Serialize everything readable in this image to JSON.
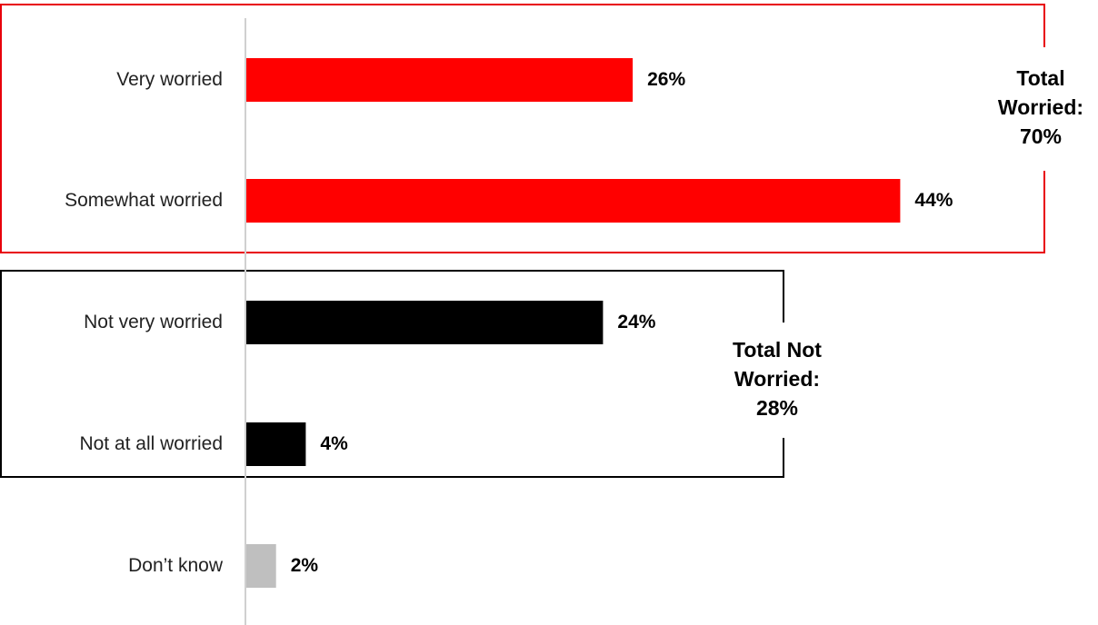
{
  "chart_data": {
    "type": "bar",
    "orientation": "horizontal",
    "categories": [
      "Very worried",
      "Somewhat worried",
      "Not very worried",
      "Not at all worried",
      "Don’t know"
    ],
    "values": [
      26,
      44,
      24,
      4,
      2
    ],
    "value_labels": [
      "26%",
      "44%",
      "24%",
      "4%",
      "2%"
    ],
    "bar_colors": [
      "#ff0000",
      "#ff0000",
      "#000000",
      "#000000",
      "#bfbfbf"
    ],
    "xlim": [
      0,
      50
    ],
    "grid": false,
    "title": "",
    "xlabel": "",
    "ylabel": "",
    "groups": [
      {
        "name": "worried",
        "members": [
          "Very worried",
          "Somewhat worried"
        ],
        "box_color": "#e8000b",
        "total_lines": [
          "Total",
          "Worried:",
          "70%"
        ]
      },
      {
        "name": "not-worried",
        "members": [
          "Not very worried",
          "Not at all worried"
        ],
        "box_color": "#000000",
        "total_lines": [
          "Total Not",
          "Worried:",
          "28%"
        ]
      }
    ]
  }
}
